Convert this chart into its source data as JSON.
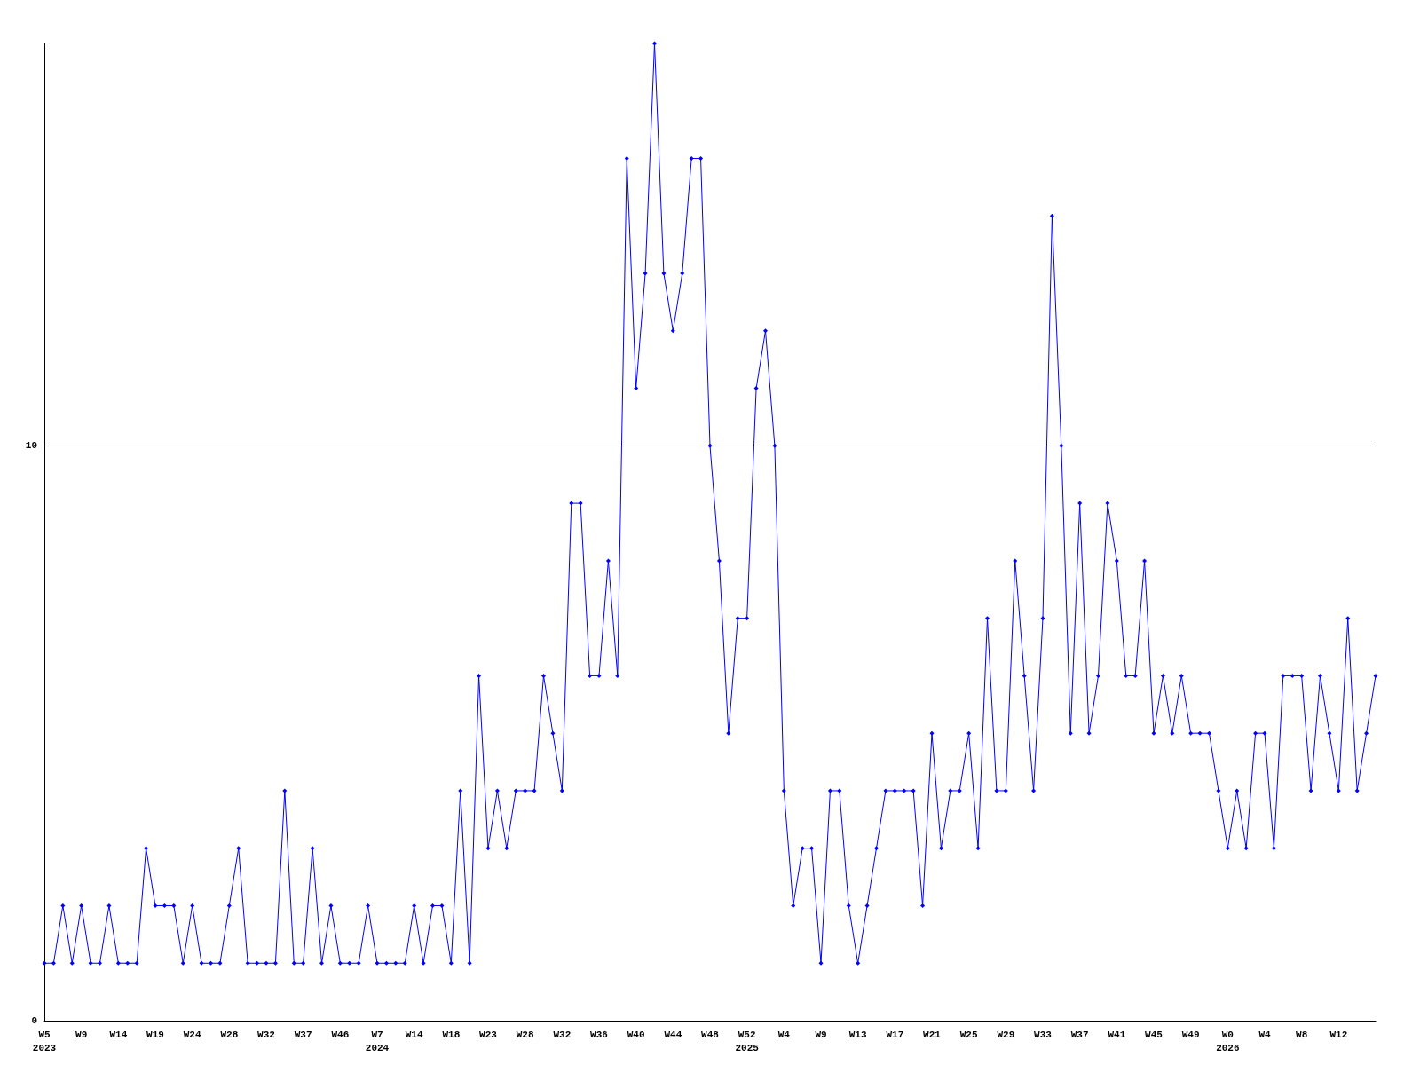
{
  "chart_data": {
    "type": "line",
    "categories": [
      "W5\n2023",
      null,
      null,
      null,
      "W9",
      null,
      null,
      null,
      "W14",
      null,
      null,
      null,
      "W19",
      null,
      null,
      null,
      "W24",
      null,
      null,
      null,
      "W28",
      null,
      null,
      null,
      "W32",
      null,
      null,
      null,
      "W37",
      null,
      null,
      null,
      "W46",
      null,
      null,
      null,
      "W7\n2024",
      null,
      null,
      null,
      "W14",
      null,
      null,
      null,
      "W18",
      null,
      null,
      null,
      "W23",
      null,
      null,
      null,
      "W28",
      null,
      null,
      null,
      "W32",
      null,
      null,
      null,
      "W36",
      null,
      null,
      null,
      "W40",
      null,
      null,
      null,
      "W44",
      null,
      null,
      null,
      "W48",
      null,
      null,
      null,
      "W52\n2025",
      null,
      null,
      null,
      "W4",
      null,
      null,
      null,
      "W9",
      null,
      null,
      null,
      "W13",
      null,
      null,
      null,
      "W17",
      null,
      null,
      null,
      "W21",
      null,
      null,
      null,
      "W25",
      null,
      null,
      null,
      "W29",
      null,
      null,
      null,
      "W33",
      null,
      null,
      null,
      "W37",
      null,
      null,
      null,
      "W41",
      null,
      null,
      null,
      "W45",
      null,
      null,
      null,
      "W49",
      null,
      null,
      null,
      "W0\n2026",
      null,
      null,
      null,
      "W4",
      null,
      null,
      null,
      "W8",
      null,
      null,
      null,
      "W12",
      null,
      null,
      null,
      null
    ],
    "series": [
      {
        "color": "#0000ff",
        "values": [
          1,
          1,
          2,
          1,
          2,
          1,
          1,
          2,
          1,
          1,
          1,
          3,
          2,
          2,
          2,
          1,
          2,
          1,
          1,
          1,
          2,
          3,
          1,
          1,
          1,
          1,
          4,
          1,
          1,
          3,
          1,
          2,
          1,
          1,
          1,
          2,
          1,
          1,
          1,
          1,
          2,
          1,
          2,
          2,
          1,
          4,
          1,
          6,
          3,
          4,
          3,
          4,
          4,
          4,
          6,
          5,
          4,
          9,
          9,
          6,
          6,
          8,
          6,
          15,
          11,
          13,
          17,
          13,
          12,
          13,
          15,
          15,
          10,
          8,
          5,
          7,
          7,
          11,
          12,
          10,
          4,
          2,
          3,
          3,
          1,
          4,
          4,
          2,
          1,
          2,
          3,
          4,
          4,
          4,
          4,
          2,
          5,
          3,
          4,
          4,
          5,
          3,
          7,
          4,
          4,
          8,
          6,
          4,
          7,
          14,
          10,
          5,
          9,
          5,
          6,
          9,
          8,
          6,
          6,
          8,
          5,
          6,
          5,
          6,
          5,
          5,
          5,
          4,
          3,
          4,
          3,
          5,
          5,
          3,
          6,
          6,
          6,
          4,
          6,
          5,
          4,
          7,
          4,
          5,
          6
        ]
      }
    ],
    "ylim": [
      0,
      17
    ],
    "yticks": [
      0,
      10
    ],
    "grid": "y",
    "marker": "diamond",
    "line_style": "solid"
  }
}
